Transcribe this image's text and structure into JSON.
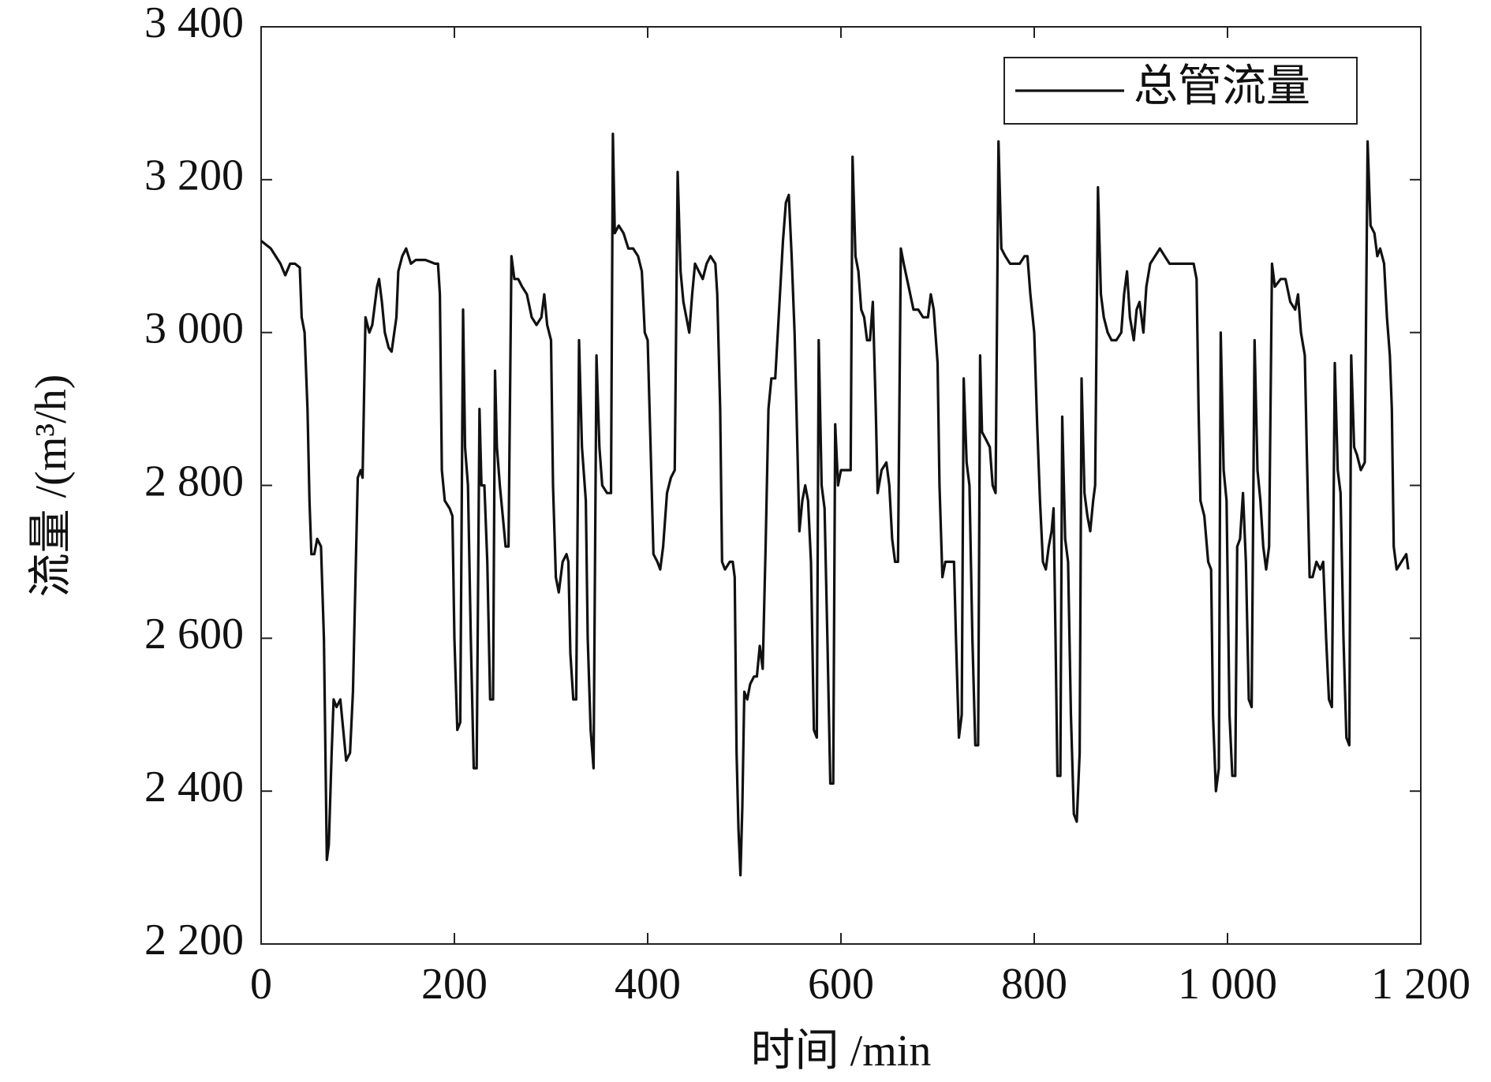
{
  "chart_data": {
    "type": "line",
    "xlabel": "时间 /min",
    "ylabel": "流量 /(m³/h)",
    "xlim": [
      0,
      1200
    ],
    "ylim": [
      2200,
      3400
    ],
    "xticks": [
      0,
      200,
      400,
      600,
      800,
      {
        "value": 1000,
        "label": "1 000"
      },
      {
        "value": 1200,
        "label": "1 200"
      }
    ],
    "yticks": [
      {
        "value": 2200,
        "label": "2 200"
      },
      {
        "value": 2400,
        "label": "2 400"
      },
      {
        "value": 2600,
        "label": "2 600"
      },
      {
        "value": 2800,
        "label": "2 800"
      },
      {
        "value": 3000,
        "label": "3 000"
      },
      {
        "value": 3200,
        "label": "3 200"
      },
      {
        "value": 3400,
        "label": "3 400"
      }
    ],
    "grid": false,
    "legend": "upper right",
    "x": [
      0,
      10,
      20,
      25,
      30,
      35,
      40,
      42,
      45,
      48,
      50,
      52,
      55,
      58,
      62,
      65,
      68,
      70,
      73,
      75,
      78,
      82,
      85,
      88,
      92,
      95,
      98,
      100,
      103,
      105,
      108,
      112,
      115,
      120,
      122,
      125,
      128,
      132,
      135,
      140,
      142,
      146,
      150,
      155,
      160,
      170,
      180,
      183,
      185,
      187,
      190,
      195,
      198,
      200,
      203,
      206,
      209,
      211,
      214,
      217,
      220,
      223,
      226,
      228,
      231,
      234,
      237,
      240,
      242,
      244,
      247,
      250,
      253,
      256,
      259,
      262,
      266,
      270,
      275,
      280,
      285,
      290,
      293,
      296,
      300,
      302,
      305,
      308,
      312,
      316,
      318,
      320,
      323,
      326,
      329,
      332,
      336,
      338,
      341,
      344,
      347,
      350,
      353,
      358,
      362,
      364,
      366,
      370,
      375,
      380,
      385,
      390,
      394,
      397,
      400,
      403,
      406,
      410,
      413,
      416,
      420,
      424,
      428,
      431,
      434,
      437,
      440,
      443,
      446,
      449,
      453,
      457,
      461,
      465,
      470,
      472,
      475,
      477,
      480,
      485,
      488,
      490,
      492,
      494,
      496,
      498,
      500,
      503,
      506,
      510,
      513,
      516,
      519,
      522,
      525,
      528,
      532,
      536,
      540,
      543,
      546,
      549,
      552,
      554,
      557,
      560,
      563,
      566,
      569,
      572,
      575,
      577,
      580,
      583,
      586,
      589,
      592,
      594,
      597,
      600,
      605,
      610,
      612,
      615,
      618,
      621,
      624,
      627,
      630,
      633,
      636,
      638,
      642,
      647,
      650,
      653,
      656,
      659,
      662,
      665,
      670,
      675,
      680,
      685,
      690,
      693,
      696,
      700,
      702,
      705,
      708,
      712,
      717,
      719,
      722,
      725,
      727,
      730,
      733,
      736,
      739,
      742,
      744,
      746,
      750,
      754,
      757,
      760,
      763,
      766,
      770,
      775,
      780,
      785,
      790,
      793,
      796,
      800,
      803,
      806,
      809,
      812,
      815,
      818,
      820,
      822,
      824,
      827,
      829,
      832,
      835,
      838,
      841,
      844,
      847,
      849,
      852,
      855,
      858,
      861,
      863,
      866,
      869,
      872,
      876,
      880,
      885,
      890,
      893,
      896,
      899,
      903,
      906,
      909,
      913,
      916,
      920,
      925,
      930,
      935,
      940,
      950,
      960,
      965,
      968,
      970,
      972,
      976,
      980,
      983,
      985,
      988,
      991,
      993,
      996,
      999,
      1002,
      1005,
      1008,
      1010,
      1013,
      1016,
      1019,
      1022,
      1025,
      1028,
      1031,
      1034,
      1037,
      1040,
      1043,
      1046,
      1049,
      1055,
      1060,
      1065,
      1070,
      1073,
      1076,
      1080,
      1082,
      1085,
      1088,
      1092,
      1096,
      1099,
      1102,
      1105,
      1108,
      1111,
      1114,
      1117,
      1120,
      1123,
      1126,
      1128,
      1131,
      1134,
      1138,
      1142,
      1145,
      1148,
      1152,
      1155,
      1158,
      1162,
      1165,
      1168,
      1170,
      1172,
      1175,
      1180,
      1185,
      1187
    ],
    "series": [
      {
        "name": "总管流量",
        "color": "#111111",
        "values": [
          3120,
          3110,
          3090,
          3075,
          3090,
          3090,
          3085,
          3020,
          3000,
          2900,
          2780,
          2710,
          2710,
          2730,
          2720,
          2600,
          2310,
          2330,
          2450,
          2520,
          2510,
          2520,
          2480,
          2440,
          2450,
          2530,
          2700,
          2810,
          2820,
          2810,
          3020,
          3000,
          3010,
          3060,
          3070,
          3040,
          3000,
          2980,
          2975,
          3020,
          3080,
          3100,
          3110,
          3090,
          3095,
          3095,
          3090,
          3090,
          3050,
          2820,
          2780,
          2770,
          2760,
          2600,
          2480,
          2490,
          3030,
          2850,
          2800,
          2600,
          2430,
          2430,
          2900,
          2800,
          2800,
          2700,
          2520,
          2520,
          2950,
          2850,
          2800,
          2760,
          2720,
          2720,
          3100,
          3070,
          3070,
          3060,
          3050,
          3020,
          3010,
          3020,
          3050,
          3010,
          2990,
          2800,
          2680,
          2660,
          2700,
          2710,
          2700,
          2580,
          2520,
          2520,
          2990,
          2850,
          2780,
          2600,
          2480,
          2430,
          2970,
          2850,
          2800,
          2790,
          2790,
          3260,
          3130,
          3140,
          3130,
          3110,
          3110,
          3100,
          3080,
          3000,
          2990,
          2850,
          2710,
          2700,
          2690,
          2720,
          2790,
          2810,
          2820,
          3210,
          3080,
          3040,
          3020,
          3000,
          3050,
          3090,
          3080,
          3070,
          3090,
          3100,
          3090,
          3050,
          2900,
          2700,
          2690,
          2700,
          2700,
          2680,
          2450,
          2350,
          2290,
          2380,
          2530,
          2520,
          2540,
          2550,
          2550,
          2590,
          2560,
          2720,
          2900,
          2940,
          2940,
          3030,
          3120,
          3170,
          3180,
          3100,
          3000,
          2900,
          2740,
          2780,
          2800,
          2780,
          2700,
          2480,
          2470,
          2990,
          2800,
          2770,
          2600,
          2410,
          2410,
          2880,
          2800,
          2820,
          2820,
          2820,
          3230,
          3100,
          3080,
          3030,
          3020,
          2990,
          2990,
          3040,
          2900,
          2790,
          2820,
          2830,
          2800,
          2730,
          2700,
          2700,
          3110,
          3090,
          3060,
          3030,
          3030,
          3020,
          3020,
          3050,
          3030,
          2960,
          2800,
          2680,
          2700,
          2700,
          2700,
          2600,
          2470,
          2500,
          2940,
          2830,
          2800,
          2600,
          2460,
          2460,
          2970,
          2870,
          2860,
          2850,
          2800,
          2790,
          3250,
          3110,
          3100,
          3090,
          3090,
          3090,
          3100,
          3100,
          3050,
          3000,
          2880,
          2780,
          2700,
          2690,
          2720,
          2740,
          2770,
          2600,
          2420,
          2420,
          2890,
          2730,
          2700,
          2500,
          2370,
          2360,
          2450,
          2940,
          2790,
          2760,
          2740,
          2780,
          2800,
          3190,
          3050,
          3020,
          3000,
          2990,
          2990,
          3000,
          3050,
          3080,
          3020,
          2990,
          3030,
          3040,
          3000,
          3060,
          3090,
          3100,
          3110,
          3100,
          3090,
          3090,
          3090,
          3090,
          3070,
          2900,
          2780,
          2760,
          2700,
          2690,
          2500,
          2400,
          2430,
          3000,
          2820,
          2780,
          2500,
          2420,
          2420,
          2720,
          2730,
          2790,
          2700,
          2520,
          2510,
          2990,
          2820,
          2780,
          2720,
          2690,
          2720,
          3090,
          3060,
          3070,
          3070,
          3040,
          3030,
          3050,
          3000,
          2970,
          2850,
          2680,
          2680,
          2700,
          2690,
          2700,
          2600,
          2520,
          2510,
          2960,
          2820,
          2790,
          2600,
          2470,
          2460,
          2970,
          2850,
          2840,
          2820,
          2830,
          3250,
          3140,
          3130,
          3100,
          3110,
          3090,
          3020,
          2970,
          2900,
          2720,
          2690,
          2700,
          2710,
          2690
        ]
      }
    ]
  }
}
